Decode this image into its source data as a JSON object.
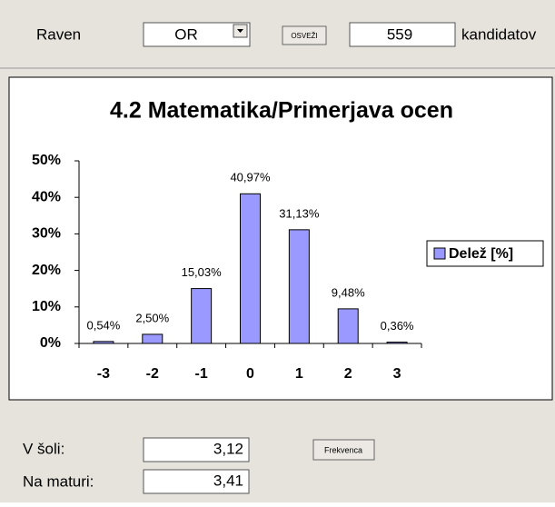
{
  "controls": {
    "level_label": "Raven",
    "level_value": "OR",
    "refresh_button": "OSVEŽI",
    "count_value": "559",
    "count_unit": "kandidatov",
    "school_label": "V šoli:",
    "school_value": "3,12",
    "freq_button": "Frekvenca",
    "exam_label": "Na maturi:",
    "exam_value": "3,41"
  },
  "chart_data": {
    "type": "bar",
    "title": "4.2 Matematika/Primerjava ocen",
    "categories": [
      "-3",
      "-2",
      "-1",
      "0",
      "1",
      "2",
      "3"
    ],
    "series": [
      {
        "name": "Delež [%]",
        "color": "#9999ff",
        "values": [
          0.54,
          2.5,
          15.03,
          40.97,
          31.13,
          9.48,
          0.36
        ],
        "value_labels": [
          "0,54%",
          "2,50%",
          "15,03%",
          "40,97%",
          "31,13%",
          "9,48%",
          "0,36%"
        ]
      }
    ],
    "ylim": [
      0,
      50
    ],
    "yticks": [
      {
        "value": 0,
        "label": "0%"
      },
      {
        "value": 10,
        "label": "10%"
      },
      {
        "value": 20,
        "label": "20%"
      },
      {
        "value": 30,
        "label": "30%"
      },
      {
        "value": 40,
        "label": "40%"
      },
      {
        "value": 50,
        "label": "50%"
      }
    ],
    "legend": "right"
  }
}
